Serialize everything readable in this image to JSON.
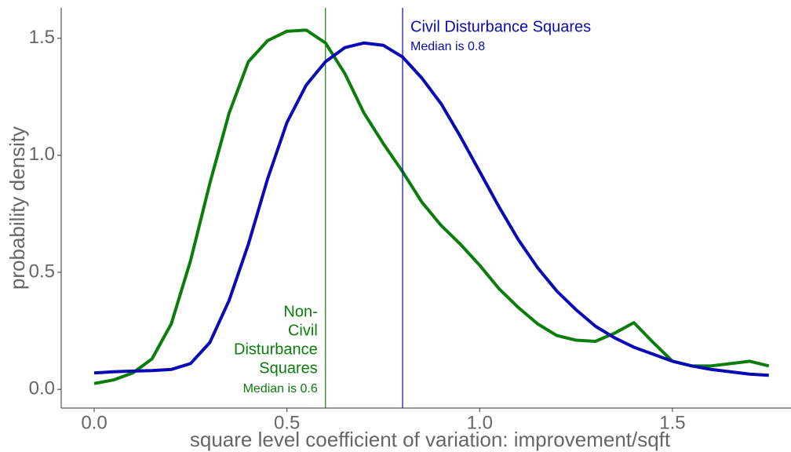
{
  "chart_data": {
    "type": "line",
    "xlabel": "square level coefficient of variation: improvement/sqft",
    "ylabel": "probability density",
    "x": [
      0.0,
      0.05,
      0.1,
      0.15,
      0.2,
      0.25,
      0.3,
      0.35,
      0.4,
      0.45,
      0.5,
      0.55,
      0.6,
      0.65,
      0.7,
      0.75,
      0.8,
      0.85,
      0.9,
      0.95,
      1.0,
      1.05,
      1.1,
      1.15,
      1.2,
      1.25,
      1.3,
      1.35,
      1.4,
      1.45,
      1.5,
      1.55,
      1.6,
      1.65,
      1.7,
      1.75
    ],
    "series": [
      {
        "color": "#0a7d0a",
        "median": 0.6,
        "label_lines": [
          "Non-",
          "Civil",
          "Disturbance",
          "Squares"
        ],
        "median_label": "Median is 0.6",
        "values": [
          0.025,
          0.04,
          0.07,
          0.13,
          0.28,
          0.55,
          0.88,
          1.18,
          1.4,
          1.49,
          1.53,
          1.535,
          1.48,
          1.35,
          1.18,
          1.05,
          0.93,
          0.8,
          0.7,
          0.62,
          0.53,
          0.43,
          0.35,
          0.28,
          0.23,
          0.21,
          0.205,
          0.24,
          0.285,
          0.2,
          0.12,
          0.1,
          0.1,
          0.11,
          0.12,
          0.1
        ]
      },
      {
        "color": "#0a0ab4",
        "median": 0.8,
        "label_lines": [
          "Civil Disturbance Squares"
        ],
        "median_label": "Median is 0.8",
        "values": [
          0.07,
          0.075,
          0.078,
          0.08,
          0.085,
          0.11,
          0.2,
          0.38,
          0.62,
          0.9,
          1.14,
          1.3,
          1.4,
          1.46,
          1.48,
          1.47,
          1.42,
          1.33,
          1.22,
          1.08,
          0.93,
          0.78,
          0.64,
          0.52,
          0.42,
          0.34,
          0.27,
          0.22,
          0.18,
          0.15,
          0.12,
          0.1,
          0.085,
          0.075,
          0.065,
          0.06
        ]
      }
    ],
    "xlim": [
      -0.0855,
      1.8075
    ],
    "ylim": [
      -0.08,
      1.63
    ],
    "xticks": [
      {
        "value": 0,
        "label": "0.0"
      },
      0.5,
      {
        "value": 1,
        "label": "1.0"
      },
      1.5
    ],
    "yticks": [
      {
        "value": 0,
        "label": "0.0"
      },
      0.5,
      {
        "value": 1,
        "label": "1.0"
      },
      1.5
    ],
    "grid": false
  }
}
